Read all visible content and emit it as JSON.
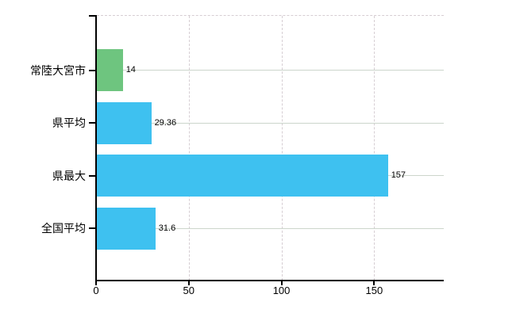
{
  "chart_data": {
    "type": "bar",
    "orientation": "horizontal",
    "title": "",
    "categories": [
      "常陸大宮市",
      "県平均",
      "県最大",
      "全国平均"
    ],
    "values": [
      14,
      29.36,
      157,
      31.6
    ],
    "value_labels": [
      "14",
      "29.36",
      "157",
      "31.6"
    ],
    "bar_colors": [
      "#6ec57f",
      "#3ec1f0",
      "#3ec1f0",
      "#3ec1f0"
    ],
    "x_ticks": [
      0,
      50,
      100,
      150
    ],
    "x_tick_labels": [
      "0",
      "50",
      "100",
      "150"
    ],
    "xlim": [
      0,
      187.1
    ],
    "ylabel": "",
    "xlabel": "",
    "legend": "none",
    "grid": {
      "vertical": "dashed at x ticks 50/100/150",
      "horizontal": "solid at each category center"
    },
    "colors": {
      "bar_blue": "#3ec1f0",
      "bar_green": "#6ec57f",
      "axis": "#000000",
      "grid_horizontal": "#ccd5cb",
      "grid_vertical": "#d6ced3",
      "text": "#000000",
      "background": "#ffffff"
    }
  }
}
